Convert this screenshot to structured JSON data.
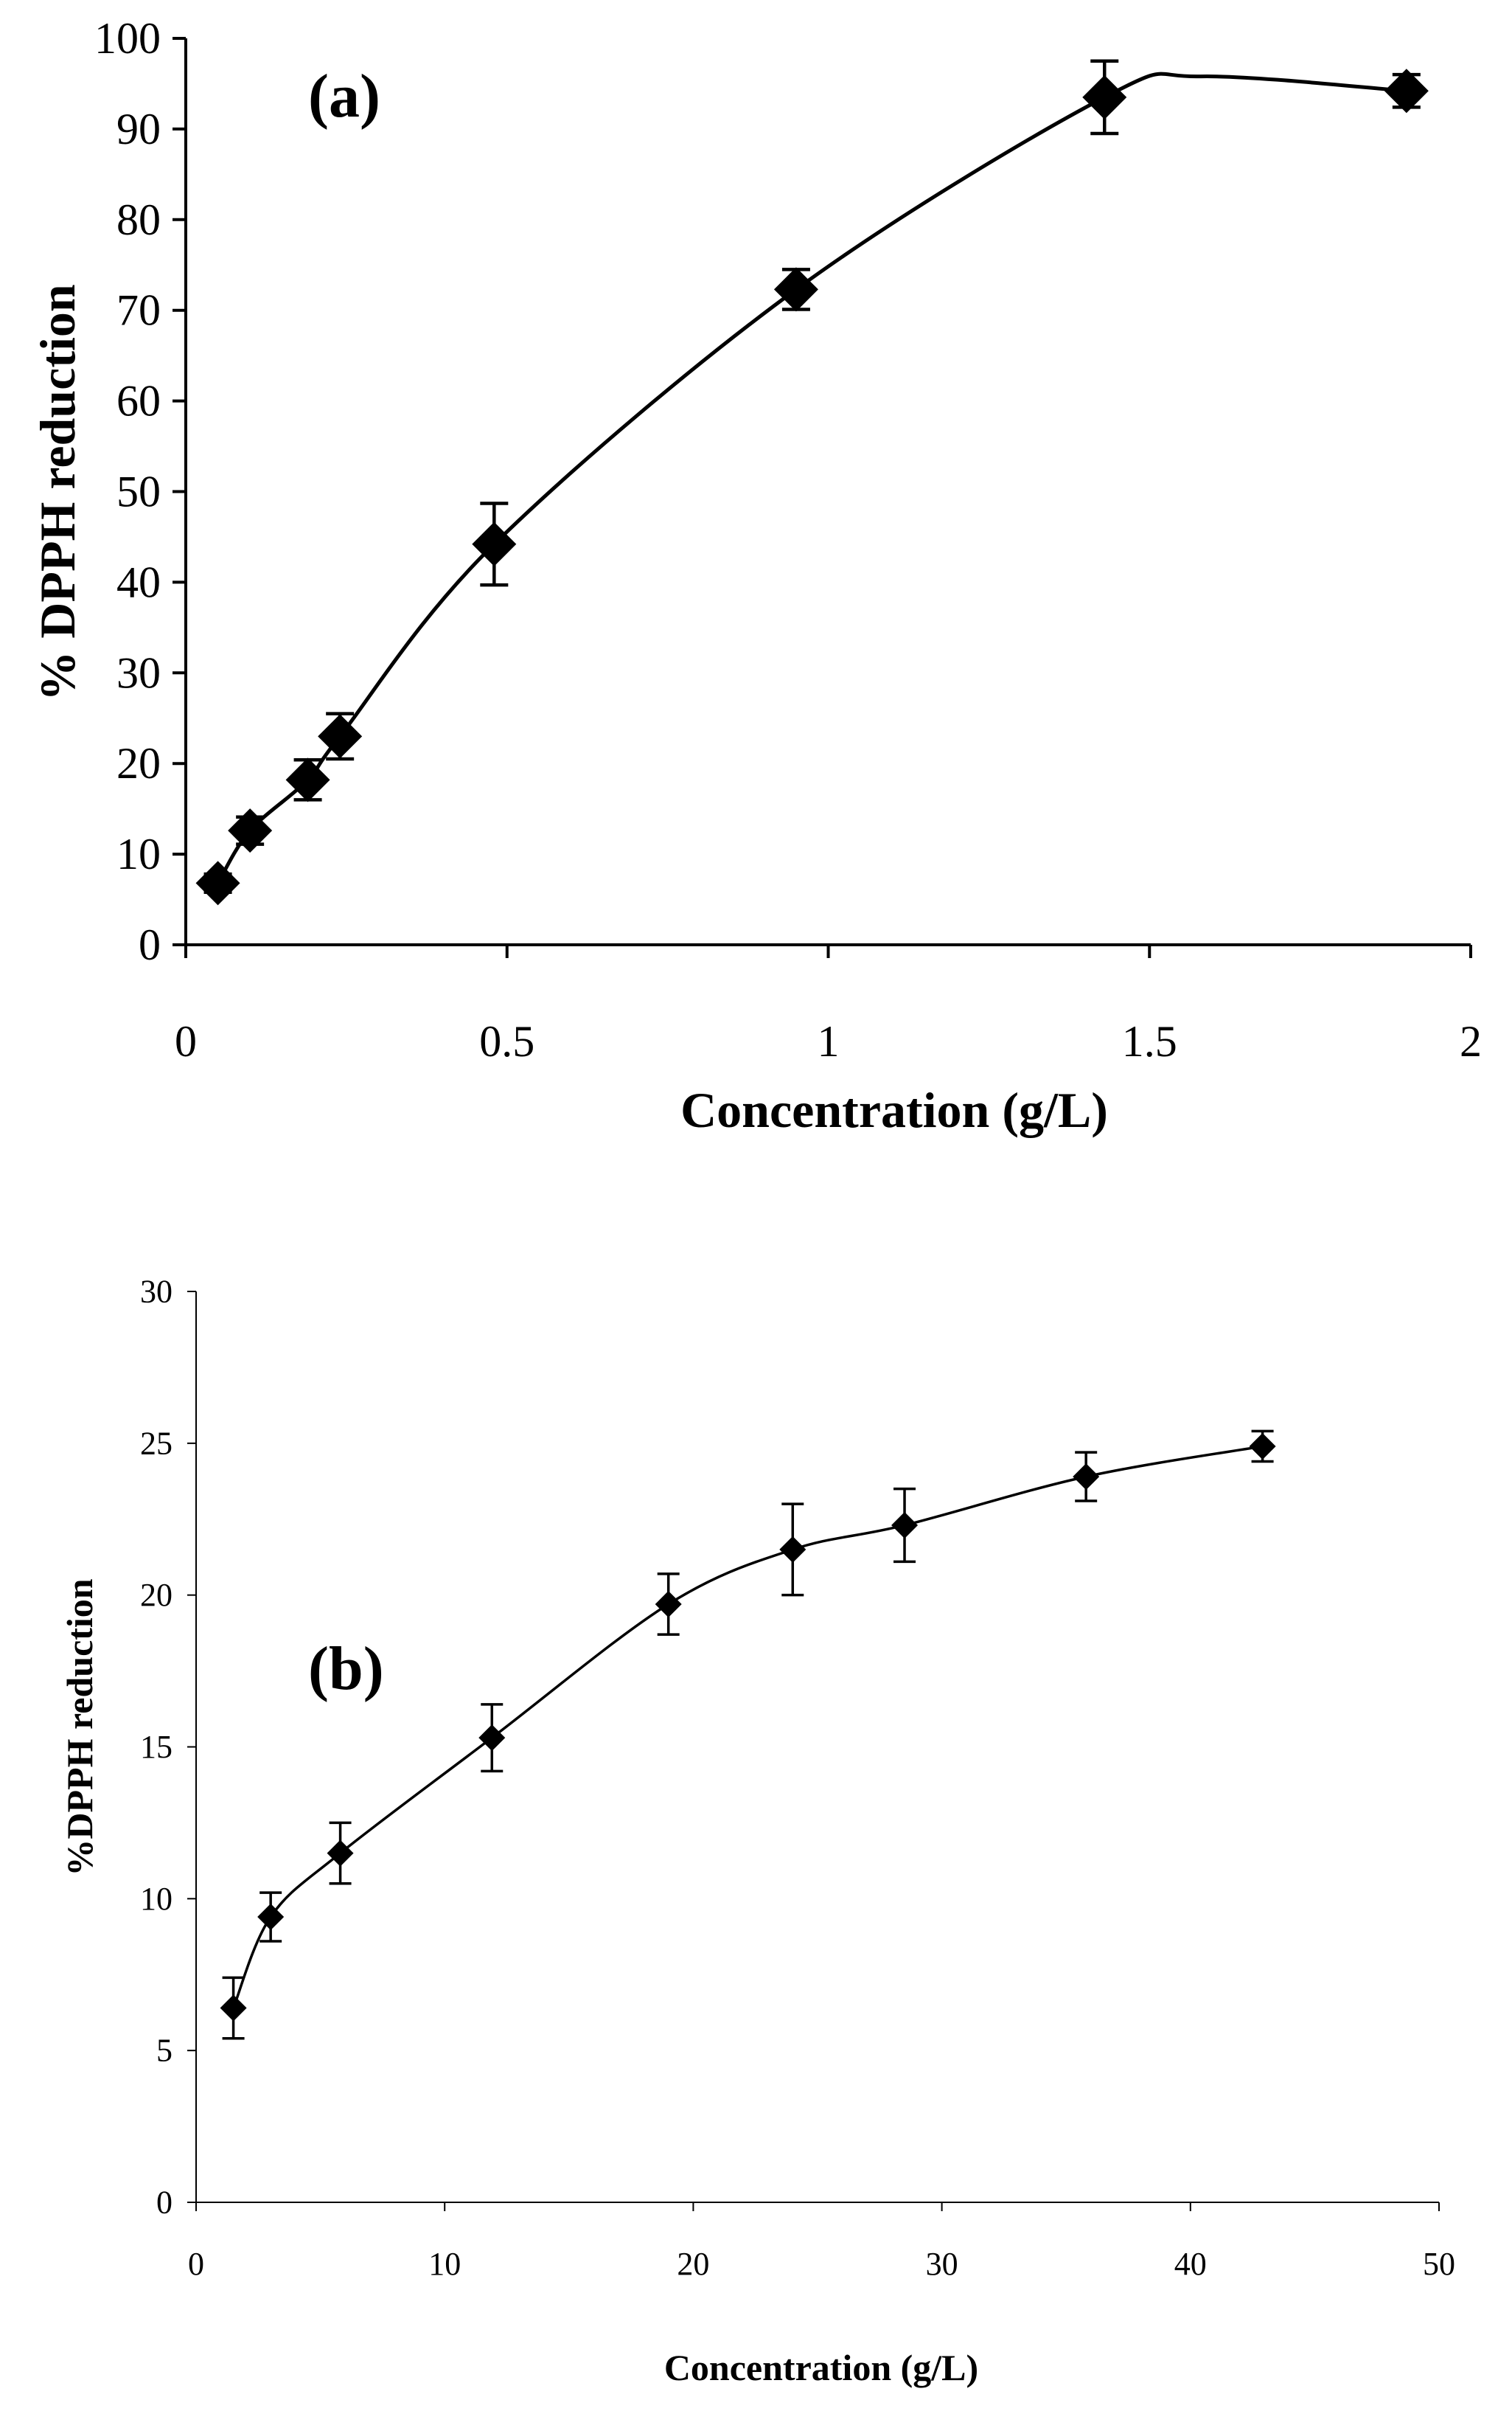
{
  "chart_data": [
    {
      "id": "a",
      "type": "line",
      "panel_label": "(a)",
      "title": "",
      "xlabel": "Concentration (g/L)",
      "ylabel": "% DPPH reduction",
      "xlim": [
        0,
        2
      ],
      "ylim": [
        0,
        100
      ],
      "xticks": [
        0,
        0.5,
        1,
        1.5,
        2
      ],
      "xtick_labels": [
        "0",
        "0.5",
        "1",
        "1.5",
        "2"
      ],
      "yticks": [
        0,
        10,
        20,
        30,
        40,
        50,
        60,
        70,
        80,
        90,
        100
      ],
      "ytick_labels": [
        "0",
        "10",
        "20",
        "30",
        "40",
        "50",
        "60",
        "70",
        "80",
        "90",
        "100"
      ],
      "grid": false,
      "marker": "diamond",
      "line_style": "smooth",
      "series": [
        {
          "name": "% DPPH reduction",
          "x": [
            0.05,
            0.1,
            0.19,
            0.24,
            0.48,
            0.95,
            1.43,
            1.9
          ],
          "y": [
            6.8,
            12.6,
            18.2,
            23.0,
            44.2,
            72.3,
            93.5,
            94.2
          ],
          "error": [
            1.0,
            1.5,
            2.2,
            2.5,
            4.5,
            2.2,
            4.0,
            1.8
          ]
        }
      ],
      "curve_extra": [
        {
          "x": 1.58,
          "y": 95.8
        }
      ]
    },
    {
      "id": "b",
      "type": "line",
      "panel_label": "(b)",
      "title": "",
      "xlabel": "Concentration (g/L)",
      "ylabel": "%DPPH reduction",
      "xlim": [
        0,
        50
      ],
      "ylim": [
        0,
        30
      ],
      "xticks": [
        0,
        10,
        20,
        30,
        40,
        50
      ],
      "xtick_labels": [
        "0",
        "10",
        "20",
        "30",
        "40",
        "50"
      ],
      "yticks": [
        0,
        5,
        10,
        15,
        20,
        25,
        30
      ],
      "ytick_labels": [
        "0",
        "5",
        "10",
        "15",
        "20",
        "25",
        "30"
      ],
      "grid": false,
      "marker": "diamond",
      "line_style": "smooth",
      "series": [
        {
          "name": "%DPPH reduction",
          "x": [
            1.5,
            3.0,
            5.8,
            11.9,
            19.0,
            24.0,
            28.5,
            35.8,
            42.9
          ],
          "y": [
            6.4,
            9.4,
            11.5,
            15.3,
            19.7,
            21.5,
            22.3,
            23.9,
            24.9
          ],
          "error": [
            1.0,
            0.8,
            1.0,
            1.1,
            1.0,
            1.5,
            1.2,
            0.8,
            0.5
          ]
        }
      ],
      "curve_extra": []
    }
  ]
}
